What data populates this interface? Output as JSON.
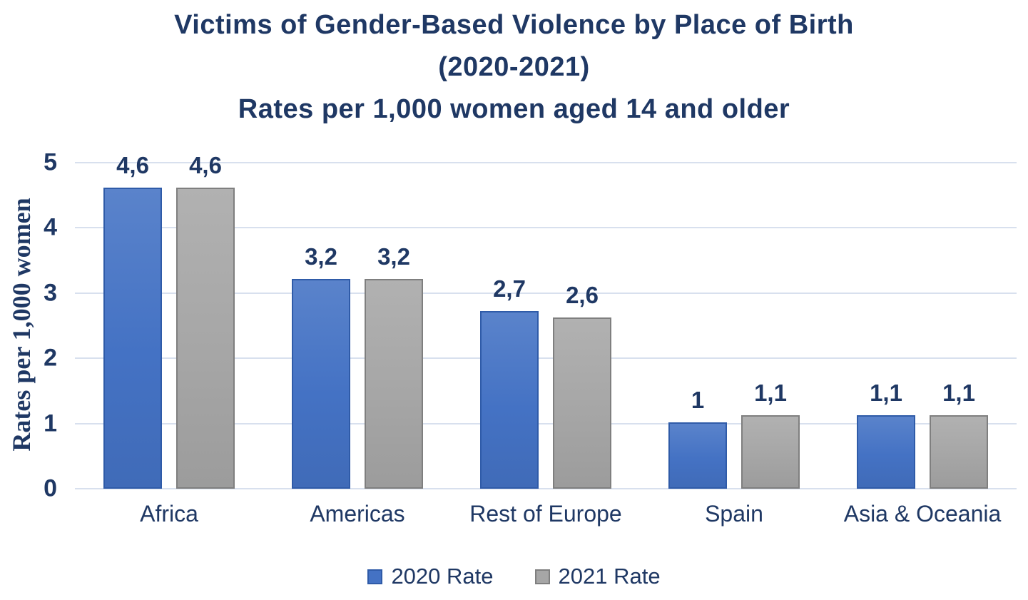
{
  "chart_data": {
    "type": "bar",
    "title": "Victims of Gender-Based Violence by Place of Birth (2020-2021) Rates per 1,000 women aged 14 and older",
    "title_lines": [
      "Victims of Gender-Based Violence by Place of Birth",
      "(2020-2021)",
      "Rates per 1,000 women aged 14 and older"
    ],
    "categories": [
      "Africa",
      "Americas",
      "Rest of Europe",
      "Spain",
      "Asia & Oceania"
    ],
    "series": [
      {
        "name": "2020 Rate",
        "color": "#4472C4",
        "border_color": "#2F5BA8",
        "values": [
          4.6,
          3.2,
          2.7,
          1,
          1.1
        ],
        "value_labels": [
          "4,6",
          "3,2",
          "2,7",
          "1",
          "1,1"
        ]
      },
      {
        "name": "2021 Rate",
        "color": "#A6A6A6",
        "border_color": "#7F7F7F",
        "values": [
          4.6,
          3.2,
          2.6,
          1.1,
          1.1
        ],
        "value_labels": [
          "4,6",
          "3,2",
          "2,6",
          "1,1",
          "1,1"
        ]
      }
    ],
    "xlabel": "",
    "ylabel": "Rates per 1,000 women",
    "ylim": [
      0,
      5
    ],
    "yticks": [
      "0",
      "1",
      "2",
      "3",
      "4",
      "5"
    ],
    "grid": true,
    "legend_position": "bottom",
    "decimal_separator": ","
  },
  "colors": {
    "background": "#FFFFFF",
    "text_navy": "#1F3864",
    "gridline": "#D8E0EE"
  }
}
